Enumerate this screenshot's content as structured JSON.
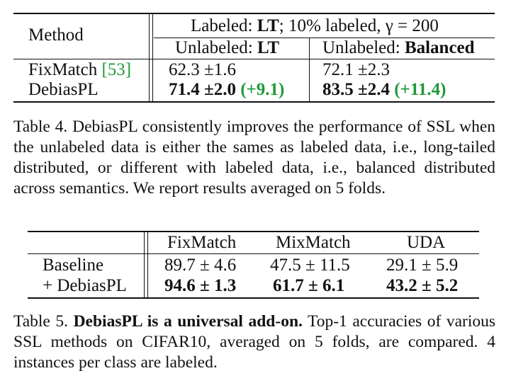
{
  "table4": {
    "header": {
      "method": "Method",
      "labeled_prefix": "Labeled: ",
      "labeled_lt": "LT",
      "labeled_suffix": "; 10% labeled, γ = 200",
      "unlabeled_lt_prefix": "Unlabeled: ",
      "unlabeled_lt": "LT",
      "unlabeled_bal_prefix": "Unlabeled: ",
      "unlabeled_bal": "Balanced"
    },
    "rows": [
      {
        "method": "FixMatch ",
        "ref": "[53]",
        "lt": "62.3 ±1.6",
        "bal": "72.1 ±2.3"
      },
      {
        "method": "DebiasPL",
        "lt": "71.4 ±2.0",
        "lt_gain": "(+9.1)",
        "bal": "83.5 ±2.4",
        "bal_gain": "(+11.4)"
      }
    ],
    "caption_label": "Table 4.",
    "caption": " DebiasPL consistently improves the performance of SSL when the unlabeled data is either the sames as labeled data, i.e., long-tailed distributed, or different with labeled data, i.e., balanced distributed across semantics. We report results averaged on 5 folds."
  },
  "table5": {
    "columns": [
      "FixMatch",
      "MixMatch",
      "UDA"
    ],
    "rows": [
      {
        "label": "Baseline",
        "values": [
          "89.7 ± 4.6",
          "47.5 ± 11.5",
          "29.1 ± 5.9"
        ]
      },
      {
        "label": "+ DebiasPL",
        "values": [
          "94.6 ± 1.3",
          "61.7 ± 6.1",
          "43.2 ± 5.2"
        ]
      }
    ],
    "caption_label": "Table 5.",
    "caption_bold": " DebiasPL is a universal add-on.",
    "caption": " Top-1 accuracies of various SSL methods on CIFAR10, averaged on 5 folds, are compared. 4 instances per class are labeled."
  },
  "colors": {
    "ref_green": "#1f9a38",
    "gain_green": "#1f9a38"
  }
}
